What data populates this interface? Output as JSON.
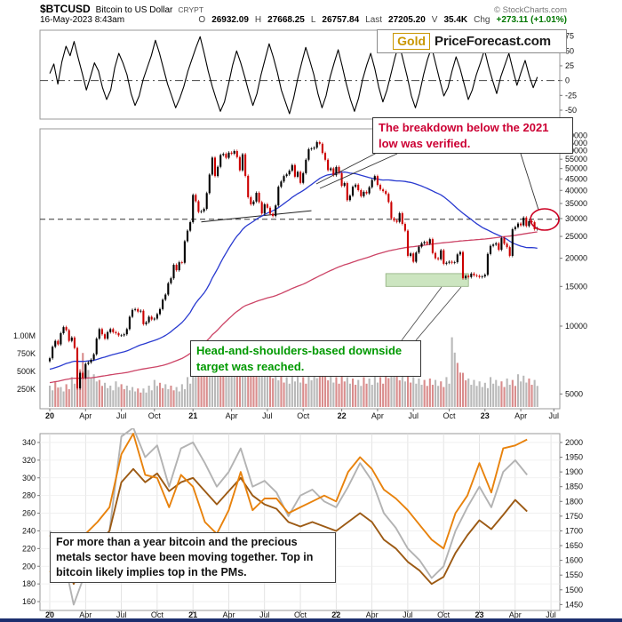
{
  "header": {
    "symbol": "$BTCUSD",
    "name": "Bitcoin to US Dollar",
    "exchange": "CRYPT",
    "copyright": "© StockCharts.com",
    "datetime": "16-May-2023 8:43am",
    "quote": {
      "o_label": "O",
      "o": "26932.09",
      "h_label": "H",
      "h": "27668.25",
      "l_label": "L",
      "l": "26757.84",
      "last_label": "Last",
      "last": "27205.20",
      "v_label": "V",
      "v": "35.4K",
      "chg_label": "Chg",
      "chg": "+273.11 (+1.01%)"
    }
  },
  "logo": {
    "gold": "Gold",
    "site": "PriceForecast.com"
  },
  "annotations": {
    "breakdown": "The breakdown below the 2021 low was verified.",
    "target": "Head-and-shoulders-based downside target was reached.",
    "bottom_note": "For more than a year bitcoin and the precious metals sector have been moving together. Top in bitcoin likely implies top in the PMs."
  },
  "colors": {
    "candle_up": "#000000",
    "candle_down": "#cc0000",
    "sma_blue": "#2a3bd0",
    "sma_red": "#cc4466",
    "volume_up": "#b9b9b9",
    "volume_down": "#d98c8c",
    "oscillator": "#000000",
    "annotation_red": "#cc0033",
    "annotation_green": "#009900",
    "zone_fill": "rgba(141,198,115,0.45)",
    "zone_stroke": "#8fae7d",
    "series_orange": "#e8820c",
    "series_gray": "#b3b3b3",
    "series_brown": "#9c5a14",
    "logo_gold": "#c99700",
    "bottom_bar": "#1c2e6e",
    "ellipse_red": "#cc0022"
  },
  "chart_data": [
    {
      "type": "line",
      "name": "top-oscillator",
      "ylim": [
        -65,
        85
      ],
      "yticks": [
        75,
        50,
        25,
        0,
        -25,
        -50
      ],
      "zero_line": "dash-dot",
      "values": [
        12,
        28,
        -6,
        32,
        58,
        42,
        66,
        38,
        12,
        -16,
        6,
        30,
        16,
        -12,
        -32,
        -16,
        22,
        46,
        30,
        10,
        -22,
        -42,
        -26,
        2,
        22,
        42,
        68,
        46,
        20,
        -6,
        -26,
        -46,
        -30,
        -10,
        16,
        36,
        56,
        74,
        46,
        16,
        -10,
        -32,
        -52,
        -36,
        -6,
        26,
        50,
        30,
        6,
        -20,
        -42,
        -22,
        10,
        36,
        62,
        40,
        14,
        -16,
        -36,
        -56,
        -30,
        2,
        30,
        56,
        34,
        10,
        -22,
        -46,
        -26,
        6,
        30,
        52,
        24,
        -6,
        -32,
        -52,
        -30,
        2,
        26,
        46,
        20,
        -12,
        -36,
        -16,
        12,
        40,
        62,
        34,
        6,
        -26,
        -46,
        -22,
        10,
        36,
        56,
        28,
        0,
        -26,
        -12,
        16,
        40,
        20,
        -6,
        -32,
        -16,
        10,
        30,
        52,
        24,
        0,
        -22,
        6,
        26,
        46,
        18,
        -8,
        14,
        34,
        8,
        -12,
        6
      ]
    },
    {
      "type": "candlestick",
      "name": "btcusd-weekly-price",
      "scale": "log",
      "ylim": [
        4300,
        75000
      ],
      "yticks": [
        70000,
        65000,
        60000,
        55000,
        50000,
        45000,
        40000,
        35000,
        30000,
        25000,
        20000,
        15000,
        10000,
        5000
      ],
      "x_ticks": [
        [
          0,
          "20"
        ],
        [
          13,
          "Apr"
        ],
        [
          26,
          "Jul"
        ],
        [
          38,
          "Oct"
        ],
        [
          52,
          "21"
        ],
        [
          66,
          "Apr"
        ],
        [
          79,
          "Jul"
        ],
        [
          92,
          "Oct"
        ],
        [
          106,
          "22"
        ],
        [
          119,
          "Apr"
        ],
        [
          132,
          "Jul"
        ],
        [
          145,
          "Oct"
        ],
        [
          158,
          "23"
        ],
        [
          171,
          "Apr"
        ],
        [
          183,
          "Jul"
        ]
      ],
      "closes": [
        7200,
        8100,
        8600,
        8300,
        9300,
        9900,
        9600,
        8600,
        8900,
        8000,
        5300,
        6200,
        5900,
        6800,
        6900,
        7100,
        7500,
        8800,
        9700,
        9200,
        8800,
        9400,
        9700,
        9400,
        9300,
        9100,
        9100,
        9200,
        9700,
        11000,
        11800,
        11900,
        11600,
        11700,
        10200,
        10400,
        11000,
        10700,
        10800,
        11300,
        11900,
        13100,
        13800,
        15500,
        16300,
        18700,
        17700,
        19200,
        19100,
        23800,
        26500,
        28900,
        38200,
        35800,
        32100,
        32300,
        33100,
        38900,
        47000,
        55900,
        46300,
        50900,
        57400,
        58100,
        55800,
        58800,
        58200,
        59800,
        56200,
        49100,
        57800,
        46400,
        37300,
        34700,
        35700,
        39000,
        35500,
        31600,
        34700,
        33500,
        31500,
        30800,
        34300,
        41500,
        43800,
        46300,
        47100,
        48900,
        51800,
        46000,
        48300,
        43200,
        47700,
        54700,
        60900,
        61300,
        61900,
        65500,
        64400,
        58600,
        54700,
        49200,
        50100,
        46700,
        50800,
        47700,
        41900,
        43100,
        36200,
        37900,
        41500,
        42400,
        40100,
        37700,
        39400,
        38800,
        41300,
        44500,
        46300,
        42300,
        40400,
        39700,
        38600,
        35500,
        30100,
        29400,
        29000,
        31700,
        28400,
        26500,
        20500,
        21000,
        19300,
        21200,
        22500,
        23300,
        23600,
        23200,
        24300,
        21100,
        20000,
        19800,
        21700,
        18900,
        19100,
        19300,
        19100,
        19200,
        20800,
        21300,
        16300,
        16700,
        16500,
        17100,
        16800,
        16700,
        16500,
        16600,
        16900,
        20900,
        22700,
        23000,
        23300,
        21800,
        24600,
        23200,
        22400,
        20500,
        26900,
        27500,
        28500,
        28000,
        30300,
        27800,
        29200,
        28900,
        26900,
        27205
      ],
      "volume_axis": [
        [
          "1.00M",
          1000
        ],
        [
          "750K",
          750
        ],
        [
          "500K",
          500
        ],
        [
          "250K",
          250
        ]
      ],
      "volume_2wk_signed_K": [
        300,
        -350,
        280,
        -320,
        420,
        -680,
        -760,
        520,
        460,
        -380,
        340,
        300,
        360,
        -320,
        300,
        280,
        -260,
        260,
        300,
        380,
        -340,
        320,
        -300,
        280,
        320,
        420,
        780,
        -700,
        -620,
        560,
        720,
        -640,
        680,
        620,
        -600,
        580,
        -640,
        -700,
        620,
        560,
        -520,
        480,
        -440,
        420,
        460,
        440,
        -420,
        480,
        520,
        -560,
        -480,
        440,
        -420,
        -460,
        420,
        -400,
        380,
        -420,
        400,
        440,
        -420,
        -520,
        560,
        -480,
        460,
        -440,
        420,
        400,
        -380,
        -400,
        380,
        -360,
        420,
        980,
        -620,
        -480,
        400,
        380,
        360,
        340,
        420,
        380,
        -360,
        400,
        -380,
        460,
        440,
        -400,
        380
      ],
      "overlays": [
        {
          "name": "sma-50-week",
          "color_key": "sma_blue"
        },
        {
          "name": "sma-200-week",
          "color_key": "sma_red"
        }
      ],
      "dashed_level": 29800,
      "trendline": {
        "from_week": 55,
        "from_price": 29000,
        "to_week": 95,
        "to_price": 32500
      },
      "hs_target_zone": {
        "from_week": 122,
        "to_week": 152,
        "price_low": 15000,
        "price_high": 17100
      }
    },
    {
      "type": "line",
      "name": "metals-comparison",
      "left_ylim": [
        150,
        350
      ],
      "left_yticks": [
        340,
        320,
        300,
        280,
        260,
        240,
        220,
        200,
        180,
        160
      ],
      "right_ylim": [
        1430,
        2030
      ],
      "right_yticks": [
        2000,
        1950,
        1900,
        1850,
        1800,
        1750,
        1700,
        1650,
        1600,
        1550,
        1500,
        1450
      ],
      "x_ticks": [
        [
          0,
          "20"
        ],
        [
          3,
          "Apr"
        ],
        [
          6,
          "Jul"
        ],
        [
          9,
          "Oct"
        ],
        [
          12,
          "21"
        ],
        [
          15,
          "Apr"
        ],
        [
          18,
          "Jul"
        ],
        [
          21,
          "Oct"
        ],
        [
          24,
          "22"
        ],
        [
          27,
          "Apr"
        ],
        [
          30,
          "Jul"
        ],
        [
          33,
          "Oct"
        ],
        [
          36,
          "23"
        ],
        [
          39,
          "Apr"
        ],
        [
          42,
          "Jul"
        ]
      ],
      "series": [
        {
          "name": "orange-line",
          "axis": "right",
          "color_key": "series_orange",
          "values": [
            1560,
            1590,
            1580,
            1690,
            1730,
            1780,
            1960,
            2030,
            1890,
            1880,
            1780,
            1890,
            1850,
            1730,
            1690,
            1770,
            1900,
            1770,
            1810,
            1810,
            1760,
            1780,
            1800,
            1820,
            1800,
            1900,
            1950,
            1910,
            1840,
            1810,
            1770,
            1720,
            1670,
            1640,
            1760,
            1820,
            1930,
            1830,
            1980,
            1990,
            2010
          ]
        },
        {
          "name": "gray-line",
          "axis": "right",
          "color_key": "series_gray",
          "values": [
            1700,
            1640,
            1450,
            1560,
            1640,
            1700,
            2020,
            2050,
            1950,
            1990,
            1850,
            1980,
            2000,
            1930,
            1850,
            1900,
            1980,
            1850,
            1870,
            1830,
            1750,
            1820,
            1840,
            1800,
            1780,
            1850,
            1930,
            1870,
            1760,
            1710,
            1640,
            1600,
            1540,
            1580,
            1700,
            1780,
            1850,
            1780,
            1900,
            1940,
            1890
          ]
        },
        {
          "name": "brown-line",
          "axis": "left",
          "color_key": "series_brown",
          "values": [
            235,
            225,
            180,
            210,
            225,
            240,
            295,
            310,
            295,
            305,
            285,
            295,
            300,
            285,
            270,
            285,
            300,
            280,
            270,
            265,
            250,
            245,
            250,
            245,
            240,
            250,
            260,
            250,
            230,
            220,
            205,
            195,
            180,
            188,
            215,
            235,
            252,
            242,
            258,
            275,
            262
          ]
        }
      ]
    }
  ]
}
